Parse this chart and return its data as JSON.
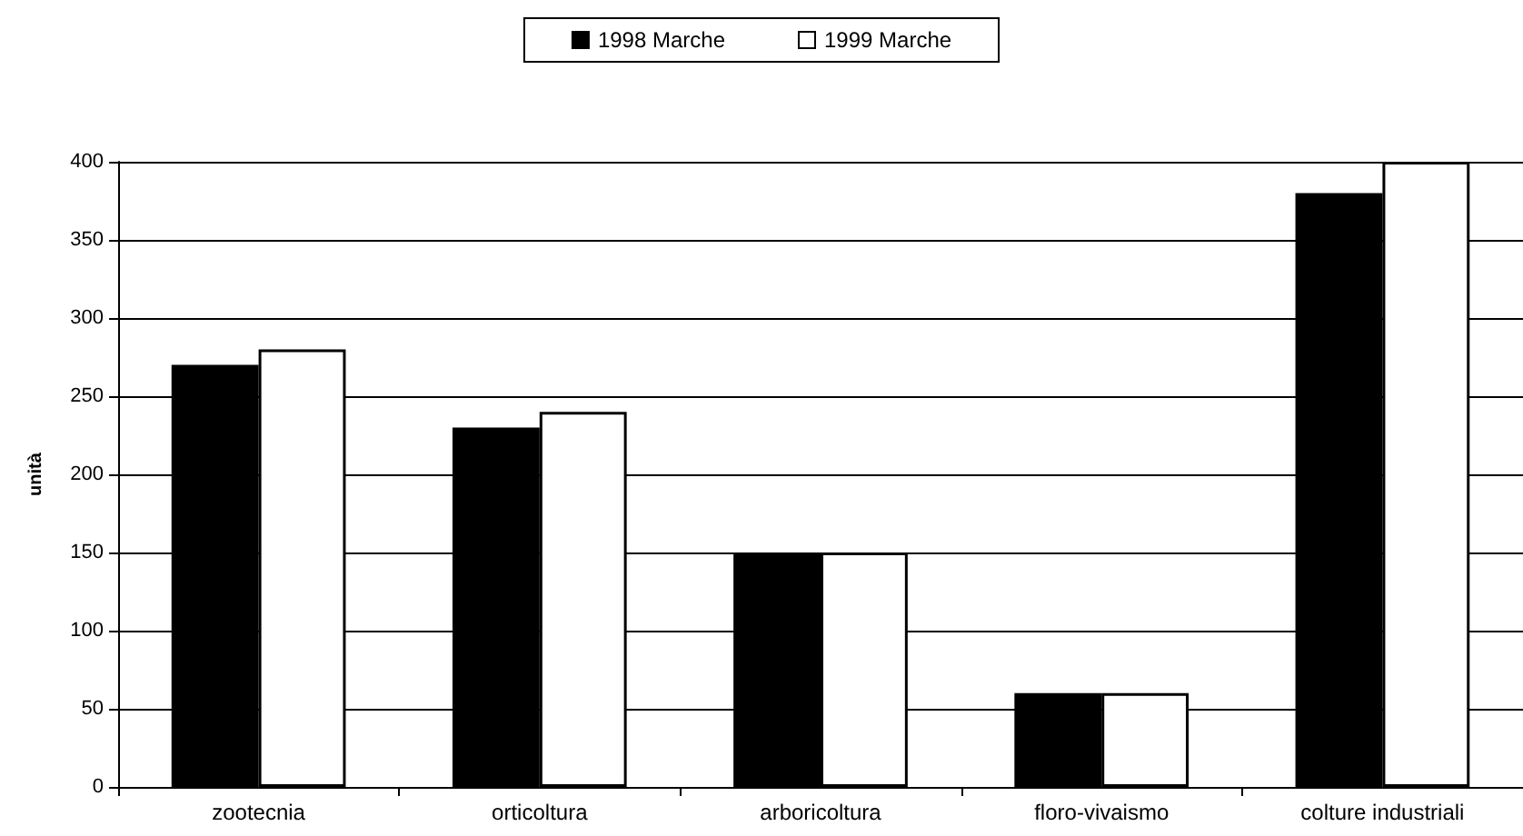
{
  "chart_data": {
    "type": "bar",
    "ylabel": "unità",
    "categories": [
      "zootecnia",
      "orticoltura",
      "arboricoltura",
      "floro-vivaismo",
      "colture industriali"
    ],
    "series": [
      {
        "name": "1998 Marche",
        "color": "#000000",
        "values": [
          270,
          230,
          150,
          60,
          380
        ]
      },
      {
        "name": "1999 Marche",
        "color": "#ffffff",
        "values": [
          280,
          240,
          150,
          60,
          400
        ]
      }
    ],
    "ylim": [
      0,
      400
    ],
    "yticks": [
      0,
      50,
      100,
      150,
      200,
      250,
      300,
      350,
      400
    ],
    "grid": "y",
    "legend": "top"
  }
}
